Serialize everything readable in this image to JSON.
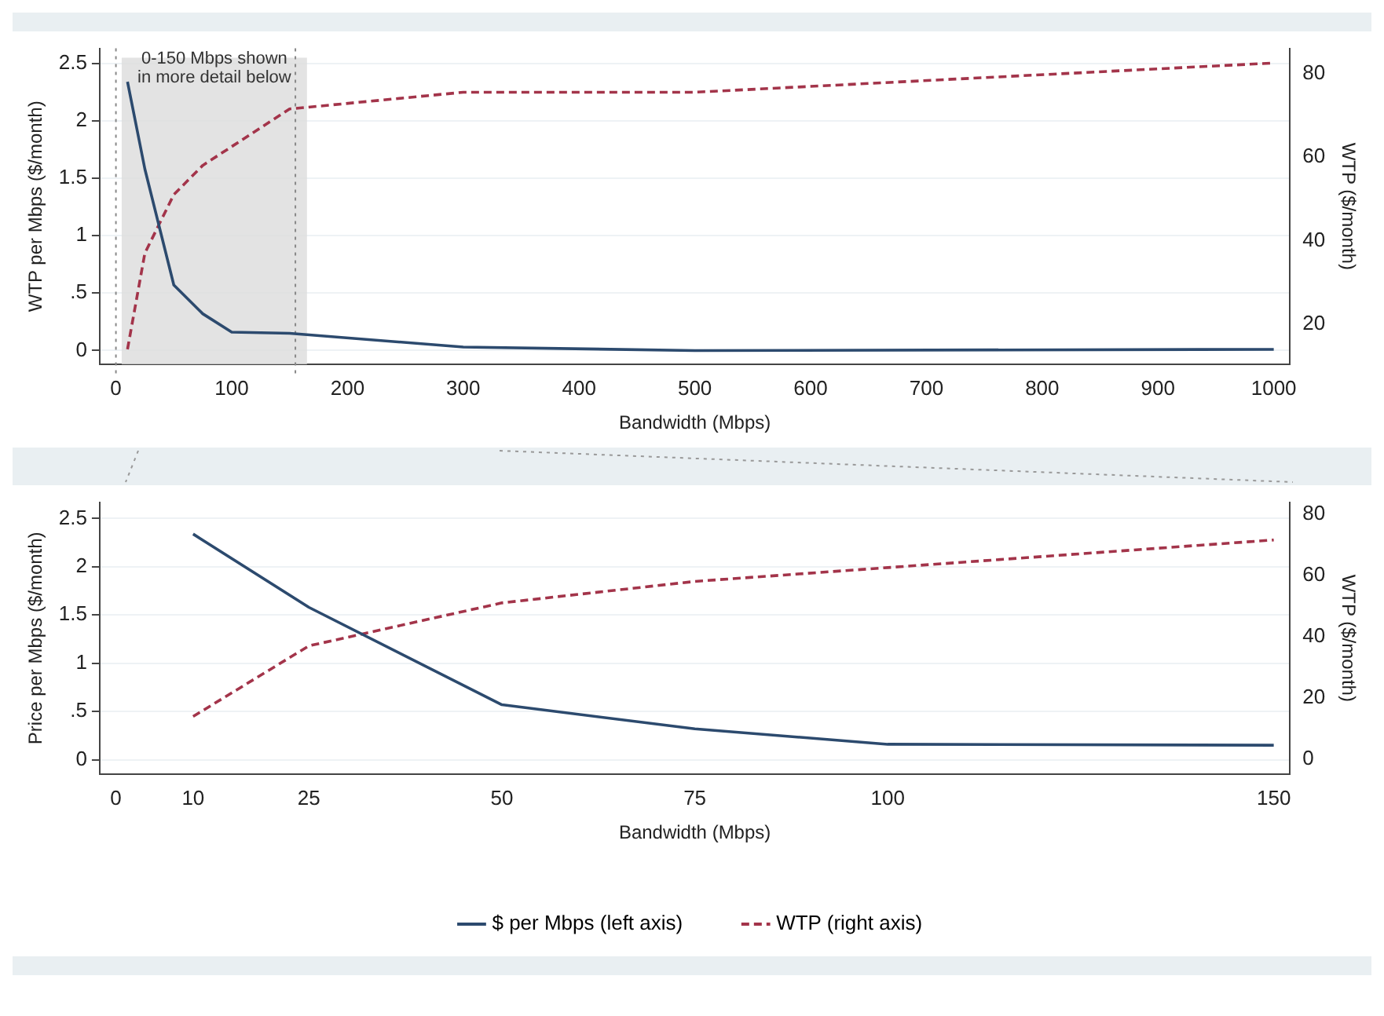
{
  "chart_data": [
    {
      "type": "line",
      "xlabel": "Bandwidth (Mbps)",
      "ylabel": "WTP per Mbps ($/month)",
      "y2label": "WTP ($/month)",
      "xlim": [
        -14,
        1014
      ],
      "xticks": [
        0,
        100,
        200,
        300,
        400,
        500,
        600,
        700,
        800,
        900,
        1000
      ],
      "ylim": [
        -0.12,
        2.63
      ],
      "yticks": [
        0,
        {
          "value": 0.5,
          "label": ".5"
        },
        1,
        1.5,
        2,
        2.5
      ],
      "y2lim": [
        10.4,
        86
      ],
      "y2ticks": [
        20,
        40,
        60,
        80
      ],
      "grid": "y",
      "legend": false,
      "marker": "none",
      "series": [
        {
          "color": "#2c4a6e",
          "line_style": "solid",
          "x": [
            10,
            25,
            50,
            75,
            100,
            150,
            300,
            500,
            1000
          ],
          "values": [
            2.34,
            1.58,
            0.57,
            0.32,
            0.16,
            0.15,
            0.03,
            0.0,
            0.01
          ]
        },
        {
          "color": "#a3344a",
          "line_style": "dashed",
          "axis": "y2",
          "x": [
            10,
            25,
            50,
            75,
            100,
            150,
            300,
            500,
            1000
          ],
          "values": [
            14,
            37,
            51,
            58,
            62.5,
            71.5,
            75.5,
            75.5,
            82.5
          ]
        }
      ],
      "bands": [
        {
          "axis": "x",
          "from": 5,
          "to": 165,
          "label": "0-150 Mbps shown\nin more detail below",
          "color": "#dcdcdc"
        }
      ],
      "ref_lines": [
        {
          "axis": "x",
          "value": 0,
          "line_style": "dotted",
          "color": "#888888"
        },
        {
          "axis": "x",
          "value": 155,
          "line_style": "dotted",
          "color": "#888888"
        }
      ]
    },
    {
      "type": "line",
      "xlabel": "Bandwidth (Mbps)",
      "ylabel": "Price per Mbps ($/month)",
      "y2label": "WTP ($/month)",
      "xlim": [
        -2.1,
        152.1
      ],
      "xticks": [
        0,
        10,
        25,
        50,
        75,
        100,
        150
      ],
      "ylim": [
        -0.15,
        2.67
      ],
      "yticks": [
        0,
        {
          "value": 0.5,
          "label": ".5"
        },
        1,
        1.5,
        2,
        2.5
      ],
      "y2lim": [
        -4.8,
        83.8
      ],
      "y2ticks": [
        0,
        20,
        40,
        60,
        80
      ],
      "grid": "y",
      "legend": "bottom",
      "marker": "none",
      "series": [
        {
          "name": "$ per Mbps (left axis)",
          "color": "#2c4a6e",
          "line_style": "solid",
          "x": [
            10,
            25,
            50,
            75,
            100,
            150
          ],
          "values": [
            2.34,
            1.58,
            0.57,
            0.32,
            0.16,
            0.15
          ]
        },
        {
          "name": "WTP (right axis)",
          "color": "#a3344a",
          "line_style": "dashed",
          "axis": "y2",
          "x": [
            10,
            25,
            50,
            75,
            100,
            150
          ],
          "values": [
            14,
            37,
            51,
            58,
            62.5,
            71.5
          ]
        }
      ]
    }
  ]
}
